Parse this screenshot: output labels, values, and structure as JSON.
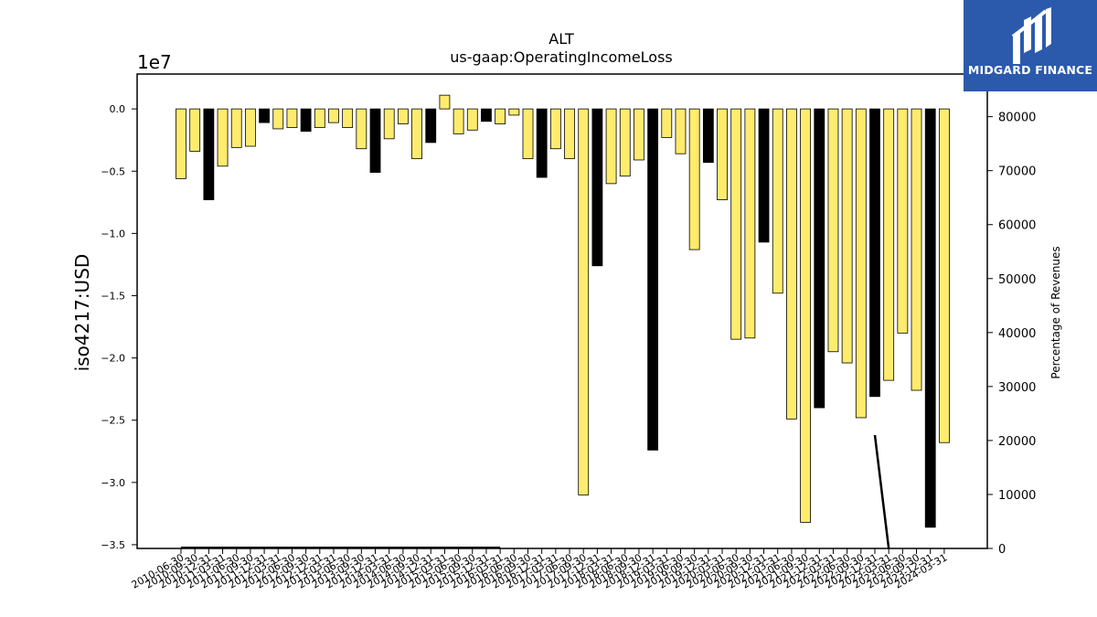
{
  "chart_data": {
    "type": "bar",
    "title": "ALT",
    "subtitle": "us-gaap:OperatingIncomeLoss",
    "ylabel": "iso4217:USD",
    "y_scale_label": "1e7",
    "y2label": "Percentage of Revenues",
    "ylim": [
      -3.53,
      0.28
    ],
    "y2lim": [
      0,
      87900
    ],
    "yticks": [
      "0.0",
      "−0.5",
      "−1.0",
      "−1.5",
      "−2.0",
      "−2.5",
      "−3.0",
      "−3.5"
    ],
    "y2ticks": [
      "0",
      "10000",
      "20000",
      "30000",
      "40000",
      "50000",
      "60000",
      "70000",
      "80000"
    ],
    "grid": false,
    "categories": [
      "2010-06-30",
      "2010-09-30",
      "2010-12-31",
      "2011-03-31",
      "2011-06-30",
      "2011-09-30",
      "2011-12-31",
      "2012-03-31",
      "2012-06-30",
      "2012-09-30",
      "2012-12-31",
      "2013-03-31",
      "2013-06-30",
      "2013-09-30",
      "2013-12-31",
      "2014-03-31",
      "2014-06-30",
      "2014-09-30",
      "2014-12-31",
      "2015-03-31",
      "2015-06-30",
      "2015-09-30",
      "2015-12-31",
      "2016-03-31",
      "2016-06-30",
      "2016-09-30",
      "2016-12-31",
      "2017-03-31",
      "2017-06-30",
      "2017-09-30",
      "2017-12-31",
      "2018-03-31",
      "2018-06-30",
      "2018-09-30",
      "2018-12-31",
      "2019-03-31",
      "2019-06-30",
      "2019-09-30",
      "2019-12-31",
      "2020-03-31",
      "2020-06-30",
      "2020-09-30",
      "2020-12-31",
      "2021-03-31",
      "2021-06-30",
      "2021-09-30",
      "2021-12-31",
      "2022-03-31",
      "2022-06-30",
      "2022-09-30",
      "2022-12-31",
      "2023-03-31",
      "2023-06-30",
      "2023-09-30",
      "2023-12-31",
      "2024-03-31"
    ],
    "series": [
      {
        "type": "bar",
        "values": [
          -5.6,
          -3.4,
          -7.3,
          -4.6,
          -3.1,
          -3.0,
          -1.1,
          -1.6,
          -1.5,
          -1.8,
          -1.5,
          -1.1,
          -1.5,
          -3.2,
          -5.1,
          -2.4,
          -1.2,
          -4.0,
          -2.7,
          1.1,
          -2.0,
          -1.7,
          -1.0,
          -1.2,
          -0.5,
          -4.0,
          -5.5,
          -3.2,
          -4.0,
          -31.0,
          -12.6,
          -6.0,
          -5.4,
          -4.1,
          -27.4,
          -2.3,
          -3.6,
          -11.3,
          -4.3,
          -7.3,
          -18.5,
          -18.4,
          -10.7,
          -14.8,
          -24.9,
          -33.2,
          -24.0,
          -19.5,
          -20.4,
          -24.8,
          -23.1,
          -21.8,
          -18.0,
          -22.6,
          -33.6,
          -26.8
        ],
        "scale": 1000000
      },
      {
        "type": "line",
        "axis": "secondary",
        "values": [
          120,
          120,
          120,
          120,
          120,
          120,
          120,
          120,
          120,
          120,
          120,
          120,
          120,
          120,
          120,
          120,
          120,
          120,
          120,
          120,
          120,
          120,
          120,
          120,
          null,
          null,
          null,
          null,
          null,
          null,
          null,
          null,
          null,
          null,
          null,
          null,
          null,
          null,
          null,
          null,
          null,
          null,
          null,
          null,
          null,
          null,
          null,
          null,
          null,
          null,
          21000,
          0,
          null,
          null,
          null,
          null
        ]
      }
    ]
  }
}
